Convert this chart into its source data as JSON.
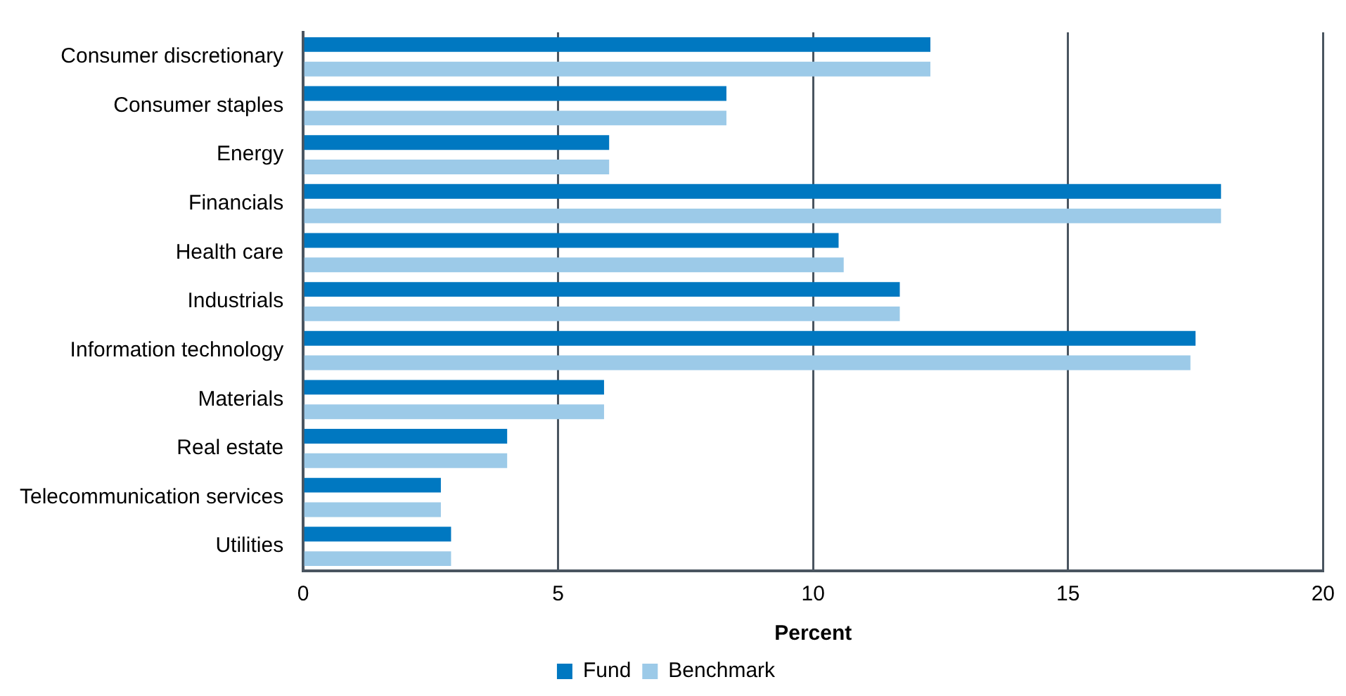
{
  "chart_data": {
    "type": "bar",
    "orientation": "horizontal",
    "xlabel": "Percent",
    "categories": [
      "Consumer discretionary",
      "Consumer staples",
      "Energy",
      "Financials",
      "Health care",
      "Industrials",
      "Information technology",
      "Materials",
      "Real estate",
      "Telecommunication services",
      "Utilities"
    ],
    "series": [
      {
        "name": "Fund",
        "color": "#0078c1",
        "values": [
          12.3,
          8.3,
          6.0,
          18.0,
          10.5,
          11.7,
          17.5,
          5.9,
          4.0,
          2.7,
          2.9
        ]
      },
      {
        "name": "Benchmark",
        "color": "#9ccae8",
        "values": [
          12.3,
          8.3,
          6.0,
          18.0,
          10.6,
          11.7,
          17.4,
          5.9,
          4.0,
          2.7,
          2.9
        ]
      }
    ],
    "xlim": [
      0,
      20
    ],
    "xticks": [
      0,
      5,
      10,
      15,
      20
    ],
    "grid": "x",
    "legend": "bottom"
  }
}
